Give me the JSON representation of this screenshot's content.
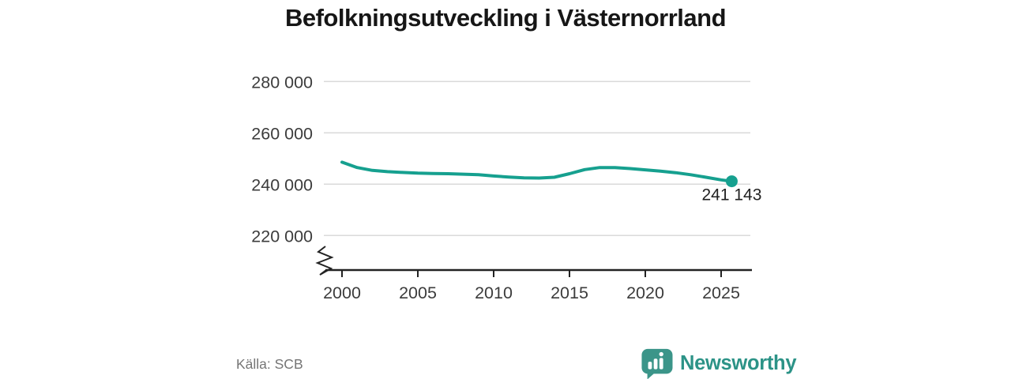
{
  "page": {
    "title": "Befolkningsutveckling i Västernorrland"
  },
  "footer": {
    "source": "Källa: SCB",
    "brand_name": "Newsworthy"
  },
  "colors": {
    "line": "#16a08f",
    "grid": "#dadada",
    "axis": "#222222",
    "tick_text": "#3c3c3c",
    "annotation_text": "#222222",
    "title_text": "#161616",
    "source_text": "#757575",
    "brand_icon": "#3b9589",
    "brand_icon_glyph": "#ffffff",
    "brand_text": "#2c9387"
  },
  "chart_data": {
    "type": "line",
    "title": "Befolkningsutveckling i Västernorrland",
    "xlabel": "",
    "ylabel": "",
    "legend": "none",
    "grid": "horizontal",
    "y_axis_break": true,
    "x": [
      2000,
      2001,
      2002,
      2003,
      2004,
      2005,
      2006,
      2007,
      2008,
      2009,
      2010,
      2011,
      2012,
      2013,
      2014,
      2015,
      2016,
      2017,
      2018,
      2019,
      2020,
      2021,
      2022,
      2023,
      2024,
      2025,
      2025.7
    ],
    "values": [
      248600,
      246500,
      245400,
      244900,
      244600,
      244300,
      244200,
      244100,
      243900,
      243700,
      243200,
      242800,
      242500,
      242400,
      242700,
      244100,
      245700,
      246500,
      246500,
      246100,
      245600,
      245100,
      244500,
      243700,
      242700,
      241700,
      241143
    ],
    "series_name": "Befolkning",
    "xticks": [
      2000,
      2005,
      2010,
      2015,
      2020,
      2025
    ],
    "yticks": {
      "values": [
        220000,
        240000,
        260000,
        280000
      ],
      "labels": [
        "220 000",
        "240 000",
        "260 000",
        "280 000"
      ]
    },
    "ylim": [
      215000,
      285000
    ],
    "end_point": {
      "x": 2025.7,
      "value": 241143,
      "label": "241 143"
    }
  }
}
